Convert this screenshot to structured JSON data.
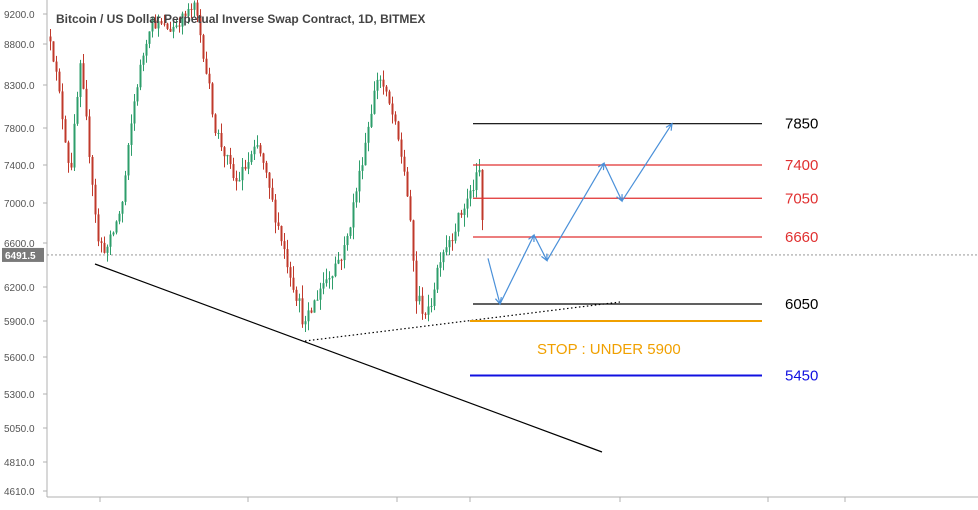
{
  "chart_data": {
    "type": "candlestick",
    "title": "Bitcoin / US Dollar Perpetual Inverse Swap Contract, 1D, BITMEX",
    "ylim": [
      4530,
      9350
    ],
    "y_ticks": [
      "9200.0",
      "8800.0",
      "8300.0",
      "7800.0",
      "7400.0",
      "7000.0",
      "6600.0",
      "6200.0",
      "5900.0",
      "5600.0",
      "5300.0",
      "5050.0",
      "4810.0",
      "4610.0"
    ],
    "current_price": {
      "label": "6491.5",
      "value": 6491.5
    },
    "colors": {
      "up": "#2e9e6b",
      "down": "#c0392b",
      "axis": "#b0b0b0"
    },
    "levels": [
      {
        "label": "7850",
        "value": 7850,
        "color": "#000000"
      },
      {
        "label": "7400",
        "value": 7400,
        "color": "#e03030"
      },
      {
        "label": "7050",
        "value": 7050,
        "color": "#e03030"
      },
      {
        "label": "6660",
        "value": 6660,
        "color": "#e03030"
      },
      {
        "label": "6050",
        "value": 6050,
        "color": "#000000"
      },
      {
        "label": "5900",
        "value": 5900,
        "color": "#f0a000"
      },
      {
        "label": "5450",
        "value": 5450,
        "color": "#1010e0"
      }
    ],
    "stop_note": "STOP : UNDER 5900",
    "projected_path": [
      6460,
      6050,
      6680,
      6440,
      7420,
      7020,
      7850
    ],
    "candles": []
  }
}
